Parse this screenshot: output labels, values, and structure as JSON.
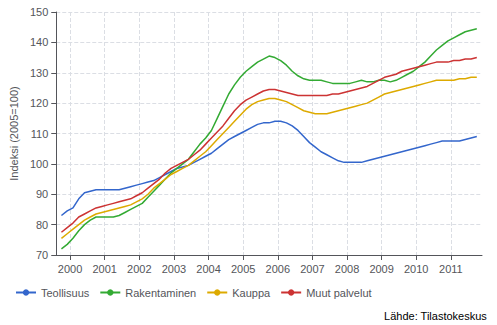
{
  "chart_data": {
    "type": "line",
    "y_label": "Indeksi (2005=100)",
    "annotation": "Lähde: Tilastokeskus",
    "xlim": [
      1999.6,
      2011.9
    ],
    "xticks": [
      2000,
      2001,
      2002,
      2003,
      2004,
      2005,
      2006,
      2007,
      2008,
      2009,
      2010,
      2011
    ],
    "ylim": [
      70,
      150
    ],
    "yticks": [
      70,
      80,
      90,
      100,
      110,
      120,
      130,
      140,
      150
    ],
    "grid": true,
    "legend": "bottom",
    "x": [
      1999.75,
      1999.9166666666667,
      2000.0833333333333,
      2000.25,
      2000.4166666666667,
      2000.5833333333333,
      2000.75,
      2000.9166666666667,
      2001.0833333333333,
      2001.25,
      2001.4166666666667,
      2001.5833333333333,
      2001.75,
      2001.9166666666667,
      2002.0833333333333,
      2002.25,
      2002.4166666666667,
      2002.5833333333333,
      2002.75,
      2002.9166666666667,
      2003.0833333333333,
      2003.25,
      2003.4166666666667,
      2003.5833333333333,
      2003.75,
      2003.9166666666667,
      2004.0833333333333,
      2004.25,
      2004.4166666666667,
      2004.5833333333333,
      2004.75,
      2004.9166666666667,
      2005.0833333333333,
      2005.25,
      2005.4166666666667,
      2005.5833333333333,
      2005.75,
      2005.9166666666667,
      2006.0833333333333,
      2006.25,
      2006.4166666666667,
      2006.5833333333333,
      2006.75,
      2006.9166666666667,
      2007.0833333333333,
      2007.25,
      2007.4166666666667,
      2007.5833333333333,
      2007.75,
      2007.9166666666667,
      2008.0833333333333,
      2008.25,
      2008.4166666666667,
      2008.5833333333333,
      2008.75,
      2008.9166666666667,
      2009.0833333333333,
      2009.25,
      2009.4166666666667,
      2009.5833333333333,
      2009.75,
      2009.9166666666667,
      2010.0833333333333,
      2010.25,
      2010.4166666666667,
      2010.5833333333333,
      2010.75,
      2010.9166666666667,
      2011.0833333333333,
      2011.25,
      2011.4166666666667,
      2011.5833333333333,
      2011.75
    ],
    "series": [
      {
        "name": "Teollisuus",
        "color": "#3366cc",
        "values": [
          83.0,
          84.5,
          85.5,
          88.5,
          90.5,
          91.0,
          91.5,
          91.5,
          91.5,
          91.5,
          91.5,
          92.0,
          92.5,
          93.0,
          93.5,
          94.0,
          94.5,
          95.5,
          96.5,
          97.5,
          98.5,
          99.0,
          99.5,
          100.5,
          101.5,
          102.5,
          103.5,
          105.0,
          106.5,
          108.0,
          109.0,
          110.0,
          111.0,
          112.0,
          113.0,
          113.5,
          113.5,
          114.0,
          114.0,
          113.5,
          112.5,
          111.0,
          109.0,
          107.0,
          105.5,
          104.0,
          103.0,
          102.0,
          101.0,
          100.5,
          100.5,
          100.5,
          100.5,
          101.0,
          101.5,
          102.0,
          102.5,
          103.0,
          103.5,
          104.0,
          104.5,
          105.0,
          105.5,
          106.0,
          106.5,
          107.0,
          107.5,
          107.5,
          107.5,
          107.5,
          108.0,
          108.5,
          109.0
        ]
      },
      {
        "name": "Rakentaminen",
        "color": "#33aa33",
        "values": [
          72.0,
          73.5,
          75.5,
          78.0,
          80.0,
          81.5,
          82.5,
          82.5,
          82.5,
          82.5,
          83.0,
          84.0,
          85.0,
          86.0,
          87.0,
          89.0,
          91.0,
          93.0,
          95.0,
          97.0,
          98.5,
          100.0,
          101.5,
          104.0,
          106.5,
          108.5,
          111.0,
          115.0,
          119.0,
          123.0,
          126.0,
          128.5,
          130.5,
          132.0,
          133.5,
          134.5,
          135.5,
          135.0,
          134.0,
          132.5,
          130.5,
          129.0,
          128.0,
          127.5,
          127.5,
          127.5,
          127.0,
          126.5,
          126.5,
          126.5,
          126.5,
          127.0,
          127.5,
          127.0,
          127.0,
          127.5,
          127.5,
          127.0,
          127.5,
          128.5,
          129.5,
          130.5,
          132.0,
          133.5,
          135.5,
          137.5,
          139.0,
          140.5,
          141.5,
          142.5,
          143.5,
          144.0,
          144.5
        ]
      },
      {
        "name": "Kauppa",
        "color": "#ddaa00",
        "values": [
          75.5,
          77.0,
          78.5,
          80.0,
          81.5,
          82.5,
          83.5,
          84.0,
          84.5,
          85.0,
          85.5,
          86.0,
          86.5,
          87.5,
          88.5,
          90.0,
          92.0,
          93.5,
          95.0,
          96.5,
          97.5,
          98.5,
          99.5,
          101.0,
          102.5,
          104.0,
          106.0,
          108.0,
          110.0,
          112.0,
          114.0,
          116.0,
          118.0,
          119.5,
          120.5,
          121.0,
          121.5,
          121.5,
          121.0,
          120.5,
          119.5,
          118.5,
          117.5,
          117.0,
          116.5,
          116.5,
          116.5,
          117.0,
          117.5,
          118.0,
          118.5,
          119.0,
          119.5,
          120.0,
          121.0,
          122.0,
          123.0,
          123.5,
          124.0,
          124.5,
          125.0,
          125.5,
          126.0,
          126.5,
          127.0,
          127.5,
          127.5,
          127.5,
          127.5,
          128.0,
          128.0,
          128.5,
          128.5
        ]
      },
      {
        "name": "Muut palvelut",
        "color": "#cc3333",
        "values": [
          77.5,
          79.0,
          80.5,
          82.5,
          83.5,
          84.5,
          85.5,
          86.0,
          86.5,
          87.0,
          87.5,
          88.0,
          88.5,
          89.5,
          90.5,
          92.0,
          93.5,
          95.0,
          97.0,
          98.5,
          99.5,
          100.5,
          101.5,
          103.0,
          104.5,
          106.5,
          108.5,
          110.5,
          112.5,
          115.0,
          117.5,
          119.5,
          121.0,
          122.0,
          123.0,
          124.0,
          124.5,
          124.5,
          124.0,
          123.5,
          123.0,
          122.5,
          122.5,
          122.5,
          122.5,
          122.5,
          122.5,
          123.0,
          123.0,
          123.5,
          124.0,
          124.5,
          125.0,
          125.5,
          126.5,
          127.5,
          128.5,
          129.0,
          129.5,
          130.5,
          131.0,
          131.5,
          132.0,
          132.5,
          133.0,
          133.5,
          133.5,
          133.5,
          134.0,
          134.0,
          134.5,
          134.5,
          135.0
        ]
      }
    ]
  }
}
